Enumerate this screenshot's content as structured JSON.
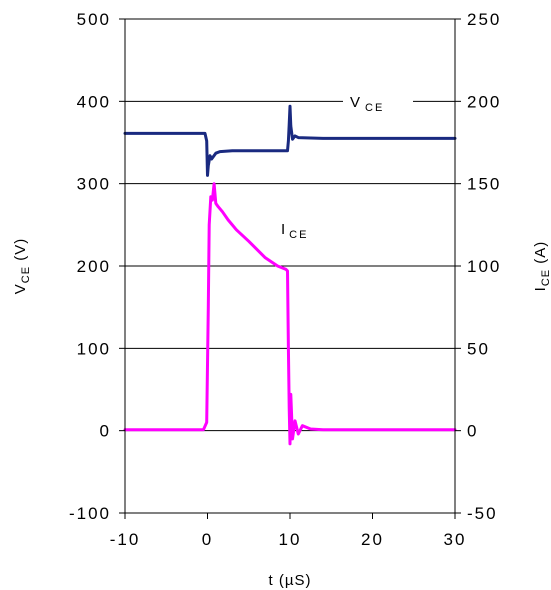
{
  "chart_data": {
    "type": "line",
    "xlabel": "t (µS)",
    "ylabel_left": {
      "main": "V",
      "sub": "CE",
      "unit": " (V)"
    },
    "ylabel_right": {
      "main": "I",
      "sub": "CE",
      "unit": " (A)"
    },
    "xlim": [
      -10,
      30
    ],
    "ylim_left": [
      -100,
      500
    ],
    "ylim_right": [
      -50,
      250
    ],
    "x_ticks": [
      "-10",
      "0",
      "10",
      "20",
      "30"
    ],
    "y_ticks_left": [
      "-100",
      "0",
      "100",
      "200",
      "300",
      "400",
      "500"
    ],
    "y_ticks_right": [
      "-50",
      "0",
      "50",
      "100",
      "150",
      "200",
      "250"
    ],
    "grid": "horizontal",
    "annotations": {
      "vce": {
        "main": "V",
        "sub": "CE"
      },
      "ice": {
        "main": "I",
        "sub": "CE"
      }
    },
    "series": [
      {
        "name": "VCE",
        "axis": "left",
        "color": "#1a2a80",
        "x": [
          -10,
          -1.2,
          -0.3,
          -0.1,
          0,
          0.1,
          0.3,
          0.5,
          1,
          1.5,
          3,
          6,
          9.7,
          9.8,
          9.9,
          10.0,
          10.1,
          10.3,
          10.6,
          11,
          14,
          20,
          30
        ],
        "y": [
          361,
          361,
          361,
          352,
          310,
          322,
          334,
          330,
          337,
          339,
          340,
          340,
          340,
          352,
          372,
          394,
          370,
          354,
          358,
          356,
          355,
          355,
          355
        ]
      },
      {
        "name": "ICE",
        "axis": "right",
        "color": "#ff00ff",
        "x": [
          -10,
          -0.5,
          -0.1,
          0.1,
          0.2,
          0.4,
          0.6,
          0.8,
          1.0,
          1.3,
          1.8,
          2.5,
          3.5,
          5,
          7,
          8.5,
          9.5,
          9.7,
          9.8,
          9.9,
          10.0,
          10.1,
          10.3,
          10.6,
          11,
          11.5,
          12.5,
          14,
          20,
          30
        ],
        "y": [
          0.5,
          0.5,
          5,
          75,
          125,
          142,
          140,
          150,
          138,
          136,
          133,
          128,
          122,
          115,
          105,
          100,
          98,
          97,
          50,
          14,
          -8,
          22,
          -5,
          6,
          -2,
          3,
          1,
          0.5,
          0.5,
          0.5
        ]
      }
    ]
  }
}
